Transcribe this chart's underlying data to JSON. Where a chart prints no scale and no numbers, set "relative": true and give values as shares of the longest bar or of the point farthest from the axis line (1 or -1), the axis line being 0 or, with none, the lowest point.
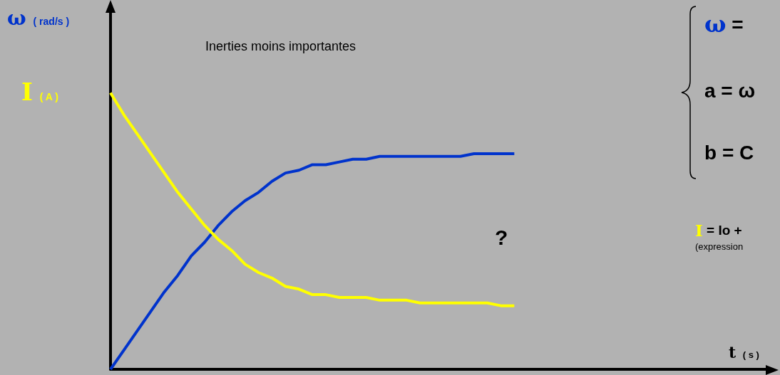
{
  "chart_data": {
    "type": "line",
    "relative": true,
    "xlabel": "t ( s )",
    "categories": [
      null,
      null,
      null,
      null,
      null,
      null,
      null,
      null,
      null,
      null,
      null,
      null,
      null,
      null,
      null,
      null,
      null,
      null,
      null,
      null,
      null,
      null,
      null,
      null,
      null,
      null,
      null,
      null,
      null,
      null,
      null,
      null,
      null,
      null,
      null,
      null,
      null,
      null,
      null,
      null,
      null,
      null,
      null,
      null,
      null,
      null,
      null,
      null,
      null,
      null
    ],
    "series": [
      {
        "name": "ω ( rad/s )",
        "color": "#0033cc",
        "values": [
          0,
          0.07,
          0.14,
          0.21,
          0.28,
          0.34,
          0.41,
          0.46,
          0.52,
          0.57,
          0.61,
          0.64,
          0.68,
          0.71,
          0.72,
          0.74,
          0.74,
          0.75,
          0.76,
          0.76,
          0.77,
          0.77,
          0.77,
          0.77,
          0.77,
          0.77,
          0.77,
          0.78,
          0.78,
          0.78,
          0.78,
          null,
          null,
          null,
          null,
          null,
          null,
          null,
          null,
          null,
          null,
          null,
          null,
          null,
          null,
          null,
          null,
          null,
          null,
          null
        ]
      },
      {
        "name": "I ( A )",
        "color": "#ffff00",
        "values": [
          1,
          0.92,
          0.85,
          0.78,
          0.71,
          0.64,
          0.58,
          0.52,
          0.47,
          0.43,
          0.38,
          0.35,
          0.33,
          0.3,
          0.29,
          0.27,
          0.27,
          0.26,
          0.26,
          0.26,
          0.25,
          0.25,
          0.25,
          0.24,
          0.24,
          0.24,
          0.24,
          0.24,
          0.24,
          0.23,
          0.23,
          null,
          null,
          null,
          null,
          null,
          null,
          null,
          null,
          null,
          null,
          null,
          null,
          null,
          null,
          null,
          null,
          null,
          null,
          null
        ]
      }
    ],
    "annotations": [
      "Inerties moins importantes",
      "?",
      "ω =",
      "a = ω",
      "b = C",
      "I = Io +",
      "(expression"
    ],
    "grid": false,
    "marker": "none",
    "line_style": "solid"
  }
}
